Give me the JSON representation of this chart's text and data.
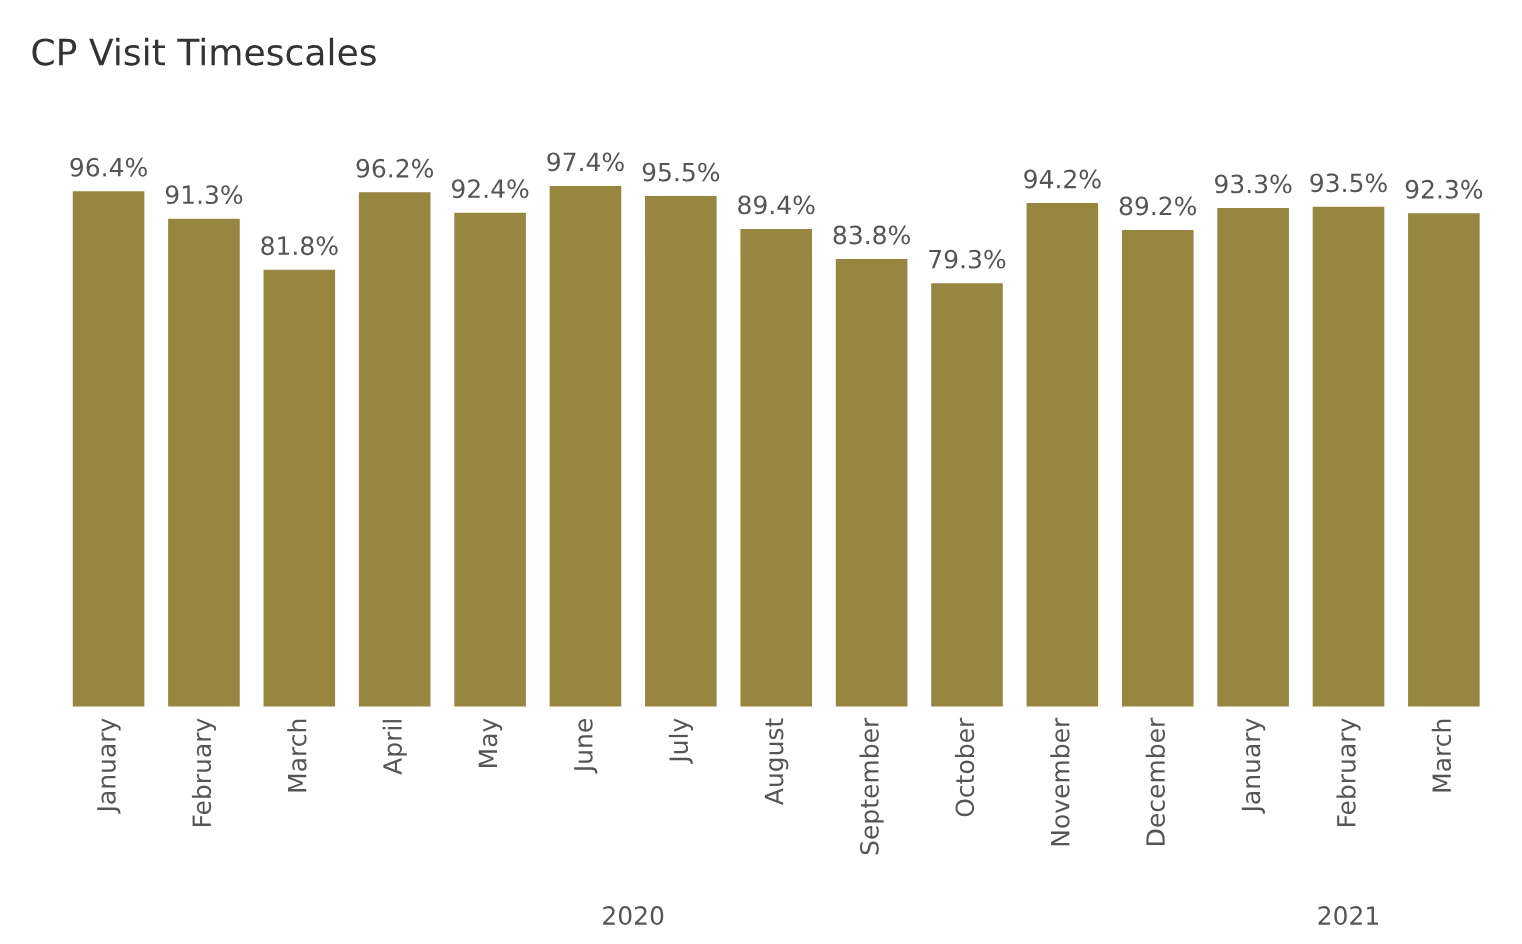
{
  "chart_data": {
    "type": "bar",
    "title": "CP Visit Timescales",
    "categories": [
      "January",
      "February",
      "March",
      "April",
      "May",
      "June",
      "July",
      "August",
      "September",
      "October",
      "November",
      "December",
      "January",
      "February",
      "March"
    ],
    "values": [
      96.4,
      91.3,
      81.8,
      96.2,
      92.4,
      97.4,
      95.5,
      89.4,
      83.8,
      79.3,
      94.2,
      89.2,
      93.3,
      93.5,
      92.3
    ],
    "value_labels": [
      "96.4%",
      "91.3%",
      "81.8%",
      "96.2%",
      "92.4%",
      "97.4%",
      "95.5%",
      "89.4%",
      "83.8%",
      "79.3%",
      "94.2%",
      "89.2%",
      "93.3%",
      "93.5%",
      "92.3%"
    ],
    "color": "#978640",
    "annotations": [
      "2020",
      "2021"
    ],
    "tick_labels": "x",
    "grid": false,
    "legend": false
  }
}
